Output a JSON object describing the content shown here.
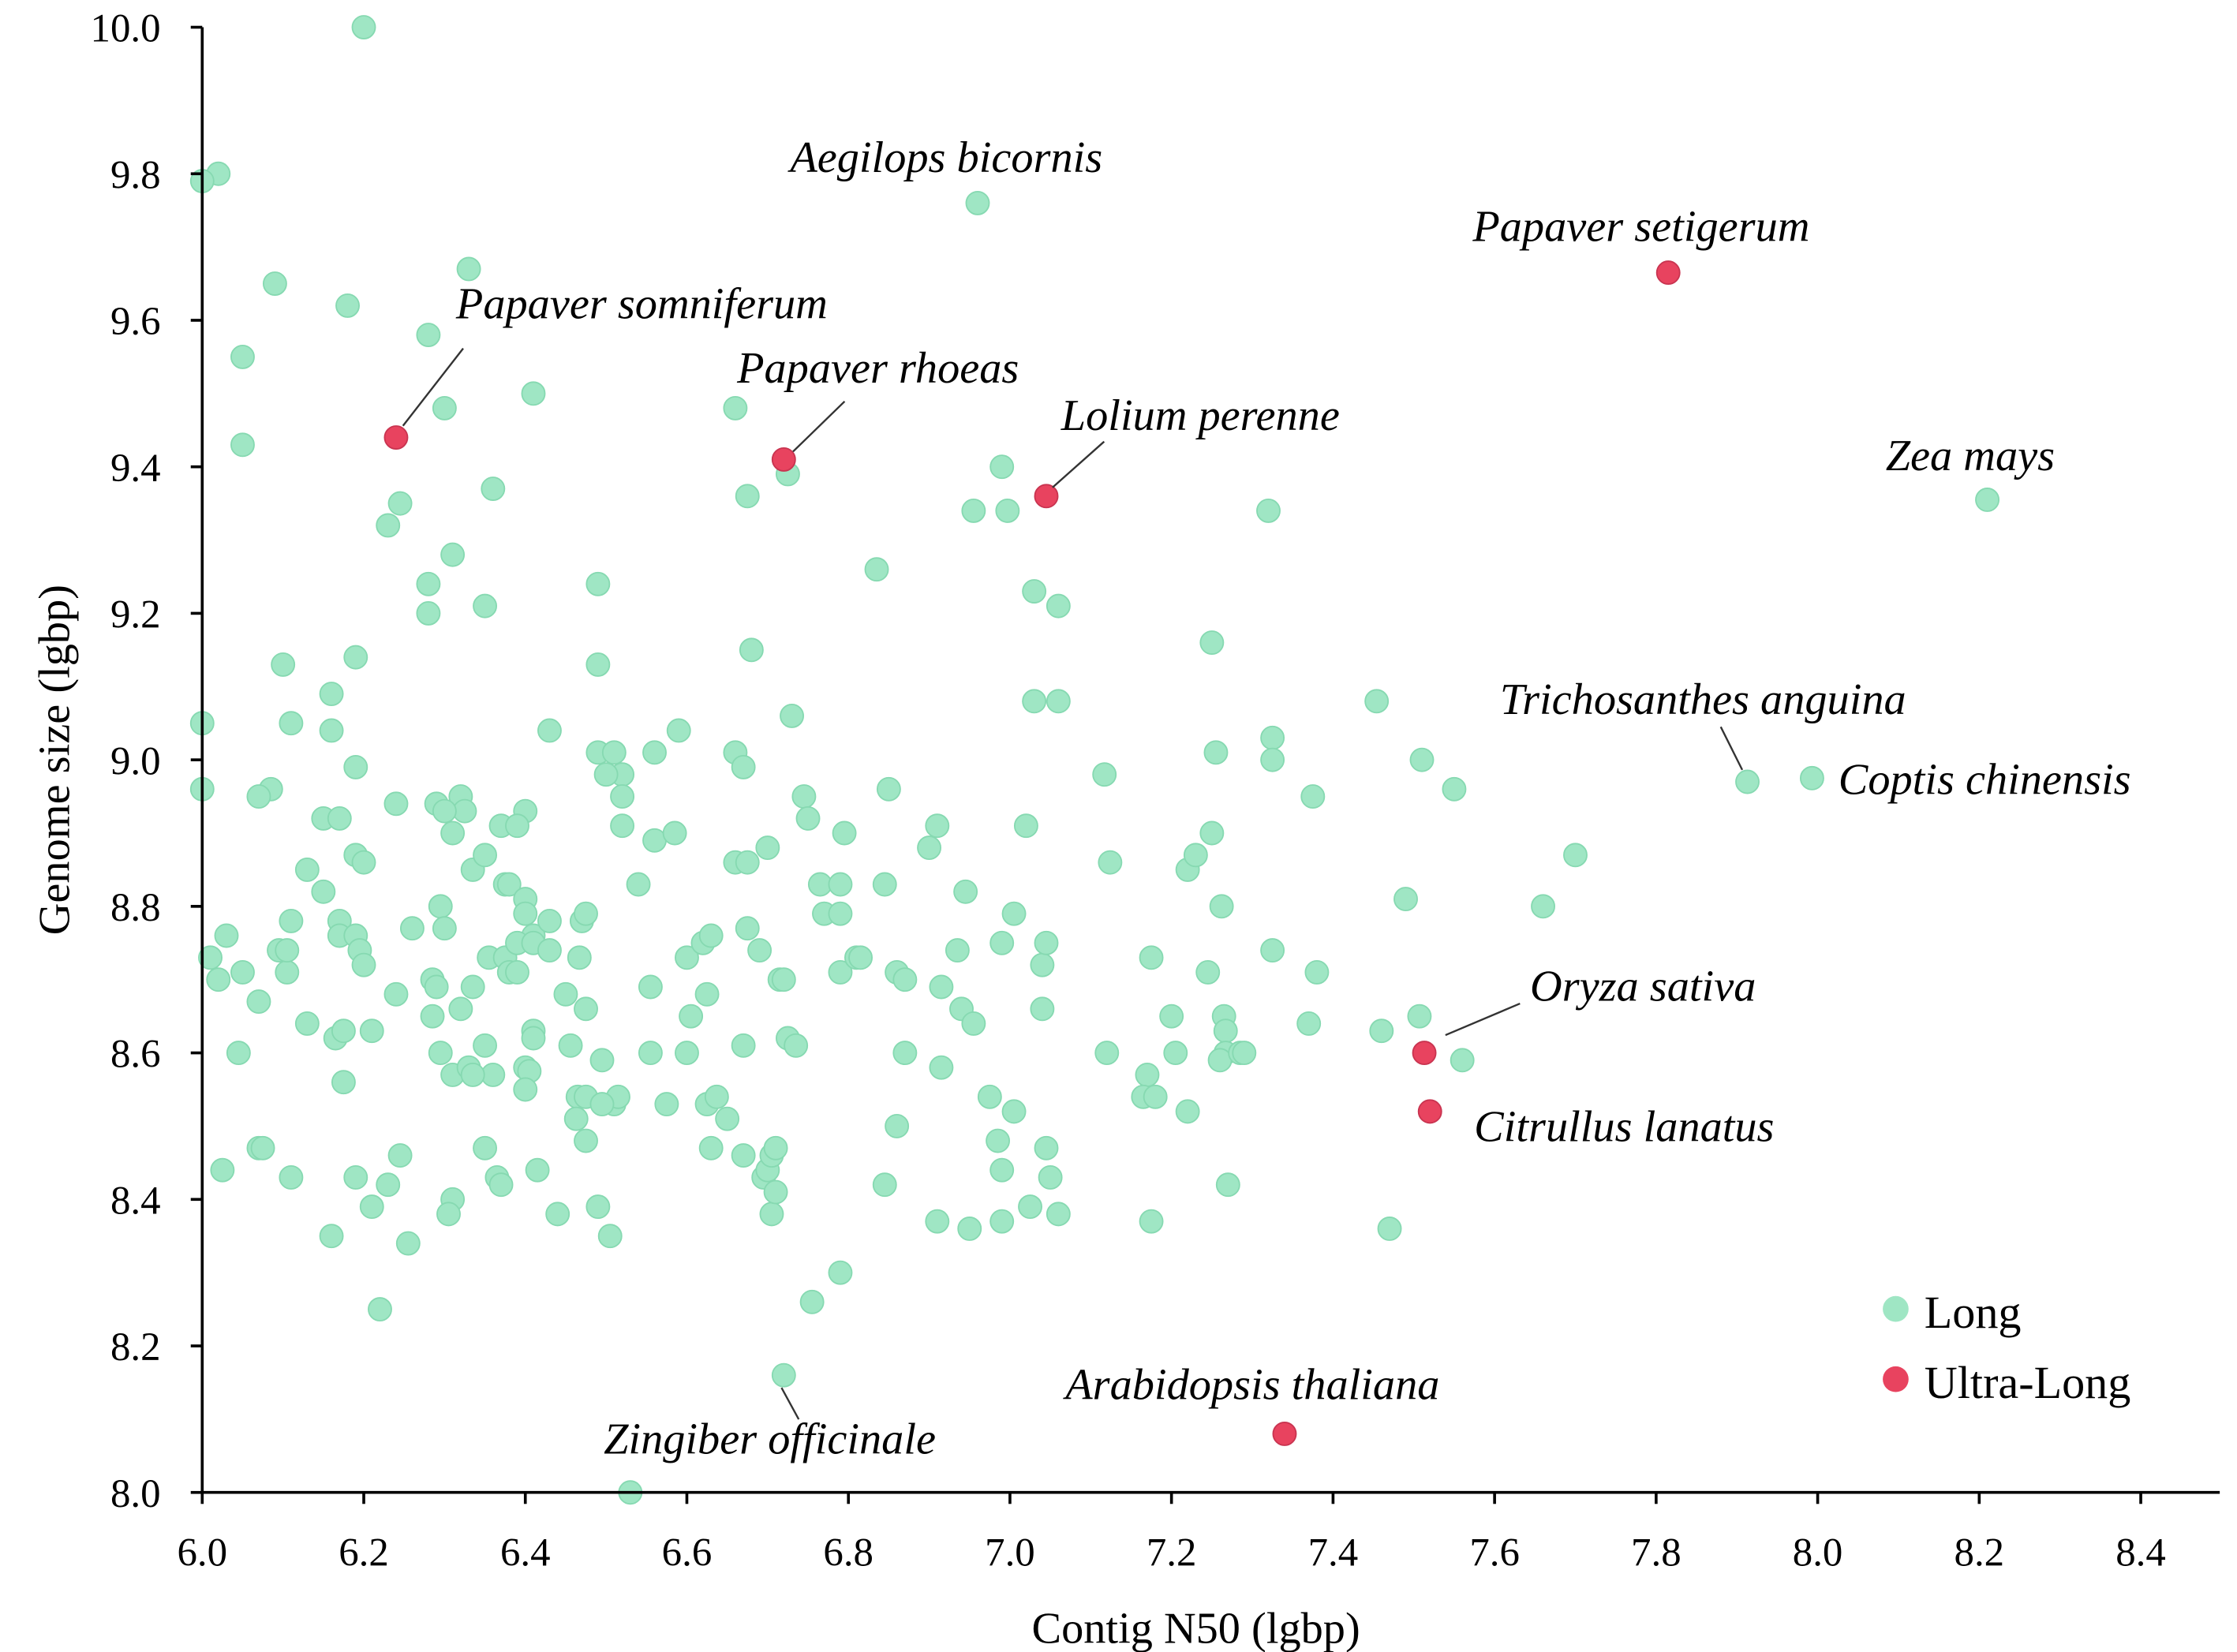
{
  "chart_data": {
    "type": "scatter",
    "title": "",
    "xlabel": "Contig N50 (lgbp)",
    "ylabel": "Genome size (lgbp)",
    "xlim": [
      6.0,
      8.5
    ],
    "ylim": [
      8.0,
      10.0
    ],
    "xticks": [
      "6.0",
      "6.2",
      "6.4",
      "6.6",
      "6.8",
      "7.0",
      "7.2",
      "7.4",
      "7.6",
      "7.8",
      "8.0",
      "8.2",
      "8.4"
    ],
    "yticks": [
      "8.0",
      "8.2",
      "8.4",
      "8.6",
      "8.8",
      "9.0",
      "9.2",
      "9.4",
      "9.6",
      "9.8",
      "10.0"
    ],
    "grid": false,
    "legend_position": "bottom-right",
    "series": [
      {
        "name": "Long",
        "color": "#9fe6c4",
        "points": [
          [
            6.2,
            10.0
          ],
          [
            6.02,
            9.8
          ],
          [
            6.0,
            9.79
          ],
          [
            6.09,
            9.65
          ],
          [
            6.18,
            9.62
          ],
          [
            6.05,
            9.55
          ],
          [
            6.05,
            9.43
          ],
          [
            6.33,
            9.67
          ],
          [
            6.28,
            9.58
          ],
          [
            6.3,
            9.48
          ],
          [
            6.41,
            9.5
          ],
          [
            6.245,
            9.35
          ],
          [
            6.23,
            9.32
          ],
          [
            6.36,
            9.37
          ],
          [
            6.31,
            9.28
          ],
          [
            6.28,
            9.24
          ],
          [
            6.28,
            9.2
          ],
          [
            6.35,
            9.21
          ],
          [
            6.49,
            9.24
          ],
          [
            6.49,
            9.13
          ],
          [
            6.1,
            9.13
          ],
          [
            6.19,
            9.14
          ],
          [
            6.16,
            9.09
          ],
          [
            6.16,
            9.04
          ],
          [
            6.11,
            9.05
          ],
          [
            6.0,
            9.05
          ],
          [
            6.0,
            8.96
          ],
          [
            6.085,
            8.96
          ],
          [
            6.07,
            8.95
          ],
          [
            6.19,
            8.99
          ],
          [
            6.24,
            8.94
          ],
          [
            6.29,
            8.94
          ],
          [
            6.32,
            8.95
          ],
          [
            6.325,
            8.93
          ],
          [
            6.3,
            8.93
          ],
          [
            6.31,
            8.9
          ],
          [
            6.43,
            9.04
          ],
          [
            6.4,
            8.93
          ],
          [
            6.37,
            8.91
          ],
          [
            6.39,
            8.91
          ],
          [
            6.15,
            8.92
          ],
          [
            6.17,
            8.92
          ],
          [
            6.19,
            8.87
          ],
          [
            6.2,
            8.86
          ],
          [
            6.13,
            8.85
          ],
          [
            6.335,
            8.85
          ],
          [
            6.35,
            8.87
          ],
          [
            6.49,
            9.01
          ],
          [
            6.51,
            9.01
          ],
          [
            6.52,
            8.98
          ],
          [
            6.5,
            8.98
          ],
          [
            6.52,
            8.95
          ],
          [
            6.52,
            8.91
          ],
          [
            6.56,
            9.01
          ],
          [
            6.59,
            9.04
          ],
          [
            6.56,
            8.89
          ],
          [
            6.585,
            8.9
          ],
          [
            6.54,
            8.83
          ],
          [
            6.15,
            8.82
          ],
          [
            6.17,
            8.78
          ],
          [
            6.17,
            8.76
          ],
          [
            6.19,
            8.76
          ],
          [
            6.11,
            8.78
          ],
          [
            6.03,
            8.76
          ],
          [
            6.095,
            8.74
          ],
          [
            6.01,
            8.73
          ],
          [
            6.02,
            8.7
          ],
          [
            6.05,
            8.71
          ],
          [
            6.105,
            8.71
          ],
          [
            6.105,
            8.74
          ],
          [
            6.07,
            8.67
          ],
          [
            6.195,
            8.74
          ],
          [
            6.2,
            8.72
          ],
          [
            6.26,
            8.77
          ],
          [
            6.24,
            8.68
          ],
          [
            6.295,
            8.8
          ],
          [
            6.3,
            8.77
          ],
          [
            6.285,
            8.7
          ],
          [
            6.29,
            8.69
          ],
          [
            6.285,
            8.65
          ],
          [
            6.295,
            8.6
          ],
          [
            6.335,
            8.69
          ],
          [
            6.32,
            8.66
          ],
          [
            6.375,
            8.83
          ],
          [
            6.38,
            8.83
          ],
          [
            6.4,
            8.81
          ],
          [
            6.4,
            8.79
          ],
          [
            6.41,
            8.76
          ],
          [
            6.43,
            8.78
          ],
          [
            6.355,
            8.73
          ],
          [
            6.375,
            8.73
          ],
          [
            6.39,
            8.75
          ],
          [
            6.41,
            8.75
          ],
          [
            6.38,
            8.71
          ],
          [
            6.39,
            8.71
          ],
          [
            6.43,
            8.74
          ],
          [
            6.45,
            8.68
          ],
          [
            6.47,
            8.78
          ],
          [
            6.475,
            8.79
          ],
          [
            6.467,
            8.73
          ],
          [
            6.475,
            8.66
          ],
          [
            6.456,
            8.61
          ],
          [
            6.41,
            8.63
          ],
          [
            6.41,
            8.62
          ],
          [
            6.4,
            8.58
          ],
          [
            6.405,
            8.575
          ],
          [
            6.4,
            8.55
          ],
          [
            6.35,
            8.61
          ],
          [
            6.36,
            8.57
          ],
          [
            6.31,
            8.57
          ],
          [
            6.33,
            8.58
          ],
          [
            6.335,
            8.57
          ],
          [
            6.045,
            8.6
          ],
          [
            6.13,
            8.64
          ],
          [
            6.165,
            8.62
          ],
          [
            6.175,
            8.63
          ],
          [
            6.175,
            8.56
          ],
          [
            6.21,
            8.63
          ],
          [
            6.495,
            8.59
          ],
          [
            6.465,
            8.54
          ],
          [
            6.475,
            8.54
          ],
          [
            6.51,
            8.53
          ],
          [
            6.515,
            8.54
          ],
          [
            6.495,
            8.53
          ],
          [
            6.463,
            8.51
          ],
          [
            6.475,
            8.48
          ],
          [
            6.025,
            8.44
          ],
          [
            6.07,
            8.47
          ],
          [
            6.075,
            8.47
          ],
          [
            6.11,
            8.43
          ],
          [
            6.19,
            8.43
          ],
          [
            6.245,
            8.46
          ],
          [
            6.23,
            8.42
          ],
          [
            6.21,
            8.39
          ],
          [
            6.16,
            8.35
          ],
          [
            6.255,
            8.34
          ],
          [
            6.22,
            8.25
          ],
          [
            6.31,
            8.4
          ],
          [
            6.305,
            8.38
          ],
          [
            6.35,
            8.47
          ],
          [
            6.365,
            8.43
          ],
          [
            6.37,
            8.42
          ],
          [
            6.415,
            8.44
          ],
          [
            6.44,
            8.38
          ],
          [
            6.49,
            8.39
          ],
          [
            6.505,
            8.35
          ],
          [
            6.53,
            8.0
          ],
          [
            6.555,
            8.69
          ],
          [
            6.555,
            8.6
          ],
          [
            6.575,
            8.53
          ],
          [
            6.6,
            8.6
          ],
          [
            6.605,
            8.65
          ],
          [
            6.6,
            8.73
          ],
          [
            6.62,
            8.75
          ],
          [
            6.63,
            8.76
          ],
          [
            6.625,
            8.68
          ],
          [
            6.625,
            8.53
          ],
          [
            6.637,
            8.54
          ],
          [
            6.65,
            8.51
          ],
          [
            6.63,
            8.47
          ],
          [
            6.66,
            9.48
          ],
          [
            6.725,
            9.39
          ],
          [
            6.675,
            9.36
          ],
          [
            6.68,
            9.15
          ],
          [
            6.73,
            9.06
          ],
          [
            6.66,
            9.01
          ],
          [
            6.67,
            8.99
          ],
          [
            6.66,
            8.86
          ],
          [
            6.675,
            8.86
          ],
          [
            6.7,
            8.88
          ],
          [
            6.675,
            8.77
          ],
          [
            6.69,
            8.74
          ],
          [
            6.715,
            8.7
          ],
          [
            6.72,
            8.7
          ],
          [
            6.67,
            8.61
          ],
          [
            6.725,
            8.62
          ],
          [
            6.735,
            8.61
          ],
          [
            6.745,
            8.95
          ],
          [
            6.75,
            8.92
          ],
          [
            6.765,
            8.83
          ],
          [
            6.77,
            8.79
          ],
          [
            6.79,
            8.83
          ],
          [
            6.795,
            8.9
          ],
          [
            6.79,
            8.79
          ],
          [
            6.79,
            8.71
          ],
          [
            6.81,
            8.73
          ],
          [
            6.815,
            8.73
          ],
          [
            6.67,
            8.46
          ],
          [
            6.695,
            8.43
          ],
          [
            6.7,
            8.44
          ],
          [
            6.705,
            8.46
          ],
          [
            6.71,
            8.47
          ],
          [
            6.705,
            8.38
          ],
          [
            6.71,
            8.41
          ],
          [
            6.755,
            8.26
          ],
          [
            6.79,
            8.3
          ],
          [
            6.72,
            8.16
          ],
          [
            6.835,
            9.26
          ],
          [
            6.85,
            8.96
          ],
          [
            6.845,
            8.83
          ],
          [
            6.86,
            8.71
          ],
          [
            6.87,
            8.7
          ],
          [
            6.87,
            8.6
          ],
          [
            6.86,
            8.5
          ],
          [
            6.845,
            8.42
          ],
          [
            6.91,
            8.91
          ],
          [
            6.9,
            8.88
          ],
          [
            6.915,
            8.69
          ],
          [
            6.915,
            8.58
          ],
          [
            6.91,
            8.37
          ],
          [
            6.935,
            8.74
          ],
          [
            6.94,
            8.66
          ],
          [
            6.955,
            8.64
          ],
          [
            6.945,
            8.82
          ],
          [
            6.95,
            8.36
          ],
          [
            6.96,
            9.76
          ],
          [
            6.955,
            9.34
          ],
          [
            6.99,
            9.4
          ],
          [
            6.997,
            9.34
          ],
          [
            6.975,
            8.54
          ],
          [
            6.985,
            8.48
          ],
          [
            6.99,
            8.44
          ],
          [
            6.99,
            8.37
          ],
          [
            6.99,
            8.75
          ],
          [
            7.005,
            8.79
          ],
          [
            7.005,
            8.52
          ],
          [
            7.025,
            8.39
          ],
          [
            7.02,
            8.91
          ],
          [
            7.03,
            9.23
          ],
          [
            7.03,
            9.08
          ],
          [
            7.04,
            8.72
          ],
          [
            7.045,
            8.75
          ],
          [
            7.04,
            8.66
          ],
          [
            7.045,
            8.47
          ],
          [
            7.05,
            8.43
          ],
          [
            7.06,
            8.38
          ],
          [
            7.06,
            9.21
          ],
          [
            7.06,
            9.08
          ],
          [
            7.117,
            8.98
          ],
          [
            7.124,
            8.86
          ],
          [
            7.12,
            8.6
          ],
          [
            7.17,
            8.57
          ],
          [
            7.165,
            8.54
          ],
          [
            7.18,
            8.54
          ],
          [
            7.175,
            8.37
          ],
          [
            7.175,
            8.73
          ],
          [
            7.2,
            8.65
          ],
          [
            7.205,
            8.6
          ],
          [
            7.22,
            8.52
          ],
          [
            7.22,
            8.85
          ],
          [
            7.23,
            8.87
          ],
          [
            7.25,
            8.9
          ],
          [
            7.25,
            9.16
          ],
          [
            7.255,
            9.01
          ],
          [
            7.245,
            8.71
          ],
          [
            7.262,
            8.8
          ],
          [
            7.265,
            8.65
          ],
          [
            7.267,
            8.63
          ],
          [
            7.267,
            8.6
          ],
          [
            7.26,
            8.59
          ],
          [
            7.285,
            8.6
          ],
          [
            7.29,
            8.6
          ],
          [
            7.27,
            8.42
          ],
          [
            7.32,
            9.34
          ],
          [
            7.325,
            9.03
          ],
          [
            7.325,
            9.0
          ],
          [
            7.325,
            8.74
          ],
          [
            7.37,
            8.64
          ],
          [
            7.375,
            8.95
          ],
          [
            7.38,
            8.71
          ],
          [
            7.454,
            9.08
          ],
          [
            7.46,
            8.63
          ],
          [
            7.47,
            8.36
          ],
          [
            7.49,
            8.81
          ],
          [
            7.51,
            9.0
          ],
          [
            7.507,
            8.65
          ],
          [
            7.55,
            8.96
          ],
          [
            7.56,
            8.59
          ],
          [
            7.66,
            8.8
          ],
          [
            7.7,
            8.87
          ],
          [
            7.913,
            8.97
          ],
          [
            7.993,
            8.975
          ],
          [
            8.21,
            9.355
          ]
        ]
      },
      {
        "name": "Ultra-Long",
        "color": "#e8435f",
        "points": [
          [
            6.24,
            9.44
          ],
          [
            6.72,
            9.41
          ],
          [
            7.045,
            9.36
          ],
          [
            7.815,
            9.665
          ],
          [
            7.513,
            8.6
          ],
          [
            7.52,
            8.52
          ],
          [
            7.34,
            8.08
          ]
        ]
      }
    ],
    "annotations": [
      {
        "text": "Aegilops bicornis",
        "x": 6.96,
        "y": 9.76
      },
      {
        "text": "Papaver setigerum",
        "x": 7.815,
        "y": 9.665
      },
      {
        "text": "Papaver somniferum",
        "x": 6.24,
        "y": 9.44
      },
      {
        "text": "Papaver rhoeas",
        "x": 6.72,
        "y": 9.41
      },
      {
        "text": "Lolium perenne",
        "x": 7.045,
        "y": 9.36
      },
      {
        "text": "Zea mays",
        "x": 8.21,
        "y": 9.355
      },
      {
        "text": "Trichosanthes anguina",
        "x": 7.913,
        "y": 8.97
      },
      {
        "text": "Coptis chinensis",
        "x": 7.993,
        "y": 8.975
      },
      {
        "text": "Oryza sativa",
        "x": 7.513,
        "y": 8.6
      },
      {
        "text": "Citrullus lanatus",
        "x": 7.52,
        "y": 8.52
      },
      {
        "text": "Arabidopsis thaliana",
        "x": 7.34,
        "y": 8.08
      },
      {
        "text": "Zingiber officinale",
        "x": 6.72,
        "y": 8.16
      }
    ]
  }
}
